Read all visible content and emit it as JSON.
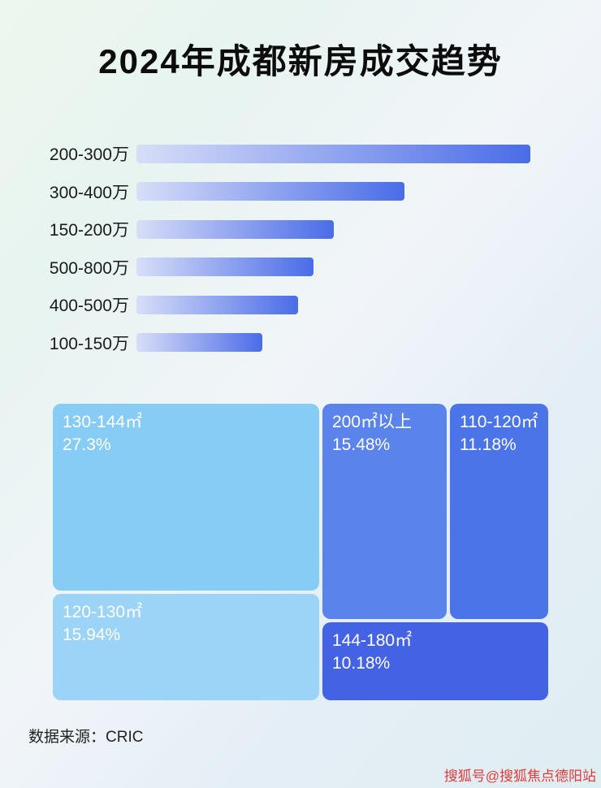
{
  "title": "2024年成都新房成交趋势",
  "source": "数据来源：CRIC",
  "watermark": "搜狐号@搜狐焦点德阳站",
  "colors": {
    "bar_gradient_from": "#d8def8",
    "bar_gradient_to": "#4a6ce8",
    "title_text": "#0c0c0c",
    "watermark_red": "#e23b3c"
  },
  "chart_data": [
    {
      "type": "bar",
      "orientation": "horizontal",
      "title": "",
      "categories": [
        "200-300万",
        "300-400万",
        "150-200万",
        "500-800万",
        "400-500万",
        "100-150万"
      ],
      "values": [
        100,
        68,
        50,
        45,
        41,
        32
      ],
      "note": "No numeric axis or data labels shown; values are relative bar lengths estimated as percent of the longest bar.",
      "xlabel": "",
      "ylabel": "",
      "grid": false,
      "legend": "none"
    },
    {
      "type": "treemap",
      "title": "",
      "items": [
        {
          "label": "130-144㎡",
          "percent": "27.3%",
          "value": 27.3,
          "color": "#87ccf4"
        },
        {
          "label": "200㎡以上",
          "percent": "15.48%",
          "value": 15.48,
          "color": "#5a84ec"
        },
        {
          "label": "110-120㎡",
          "percent": "11.18%",
          "value": 11.18,
          "color": "#4c74e9"
        },
        {
          "label": "120-130㎡",
          "percent": "15.94%",
          "value": 15.94,
          "color": "#9bd4f6"
        },
        {
          "label": "144-180㎡",
          "percent": "10.18%",
          "value": 10.18,
          "color": "#4463e4"
        }
      ],
      "legend": "none"
    }
  ]
}
